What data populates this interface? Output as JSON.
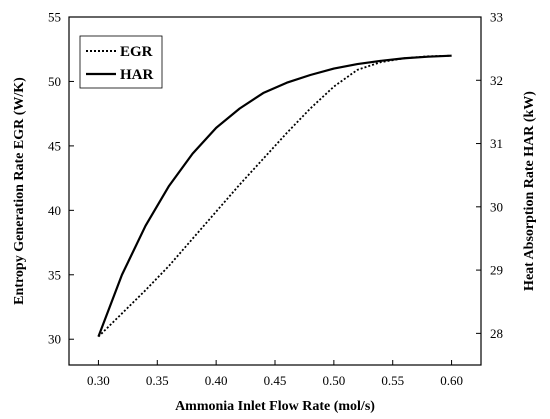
{
  "chart_data": {
    "type": "line",
    "xlabel": "Ammonia Inlet Flow Rate (mol/s)",
    "ylabel_left": "Entropy Generation Rate EGR (W/K)",
    "ylabel_right": "Heat Absorption Rate HAR (kW)",
    "xlim": [
      0.275,
      0.625
    ],
    "ylim_left": [
      28,
      55
    ],
    "ylim_right": [
      27.5,
      33
    ],
    "x_ticks": [
      0.3,
      0.35,
      0.4,
      0.45,
      0.5,
      0.55,
      0.6
    ],
    "x_tick_labels": [
      "0.30",
      "0.35",
      "0.40",
      "0.45",
      "0.50",
      "0.55",
      "0.60"
    ],
    "y_left_ticks": [
      30,
      35,
      40,
      45,
      50,
      55
    ],
    "y_left_tick_labels": [
      "30",
      "35",
      "40",
      "45",
      "50",
      "55"
    ],
    "y_right_ticks": [
      28,
      29,
      30,
      31,
      32,
      33
    ],
    "y_right_tick_labels": [
      "28",
      "29",
      "30",
      "31",
      "32",
      "33"
    ],
    "grid": false,
    "legend_position": "top-left",
    "series": [
      {
        "name": "EGR",
        "axis": "left",
        "style": "dotted",
        "color": "#000000",
        "x": [
          0.3,
          0.32,
          0.34,
          0.36,
          0.38,
          0.4,
          0.42,
          0.44,
          0.46,
          0.48,
          0.5,
          0.52,
          0.54,
          0.56,
          0.58,
          0.6
        ],
        "y": [
          30.2,
          32.0,
          33.8,
          35.7,
          37.8,
          39.9,
          42.0,
          44.0,
          46.0,
          47.9,
          49.6,
          50.9,
          51.5,
          51.8,
          51.95,
          52.0
        ]
      },
      {
        "name": "HAR",
        "axis": "left",
        "style": "solid",
        "color": "#000000",
        "x": [
          0.3,
          0.32,
          0.34,
          0.36,
          0.38,
          0.4,
          0.42,
          0.44,
          0.46,
          0.48,
          0.5,
          0.52,
          0.54,
          0.56,
          0.58,
          0.6
        ],
        "y": [
          30.2,
          35.0,
          38.8,
          41.9,
          44.4,
          46.4,
          47.9,
          49.1,
          49.9,
          50.5,
          51.0,
          51.35,
          51.6,
          51.8,
          51.92,
          52.0
        ]
      }
    ]
  }
}
